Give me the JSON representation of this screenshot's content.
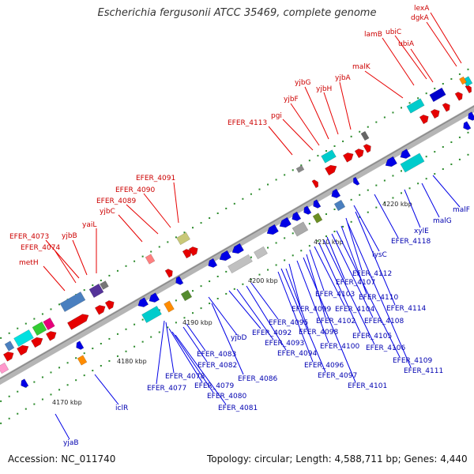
{
  "title": "Escherichia fergusonii ATCC 35469, complete genome",
  "footer": {
    "accession": "Accession: NC_011740",
    "summary": "Topology: circular; Length: 4,588,711 bp; Genes: 4,440"
  },
  "colors": {
    "forward": "#e60000",
    "reverse": "#0000e6",
    "backbone": "#9a9a9a",
    "tick": "#2a8a2a"
  },
  "scale_labels": [
    "4170 kbp",
    "4180 kbp",
    "4190 kbp",
    "4200 kbp",
    "4210 kbp",
    "4220 kbp"
  ],
  "forward_genes": [
    "metH",
    "EFER_4074",
    "EFER_4073",
    "yjbB",
    "yaiL",
    "yjbC",
    "EFER_4089",
    "EFER_4090",
    "EFER_4091",
    "EFER_4113",
    "pgi",
    "yjbF",
    "yjbG",
    "yjbH",
    "yjbA",
    "malK",
    "lamB",
    "ubiC",
    "ubiA",
    "dgkA",
    "lexA"
  ],
  "reverse_genes": [
    "yjaB",
    "iclR",
    "EFER_4077",
    "EFER_4078",
    "EFER_4079",
    "EFER_4080",
    "EFER_4081",
    "EFER_4082",
    "EFER_4083",
    "EFER_4086",
    "yjbD",
    "EFER_4092",
    "EFER_4093",
    "EFER_4094",
    "EFER_4095",
    "EFER_4096",
    "EFER_4097",
    "EFER_4098",
    "EFER_4099",
    "EFER_4100",
    "EFER_4101",
    "EFER_4102",
    "EFER_4103",
    "EFER_4104",
    "EFER_4105",
    "EFER_4106",
    "EFER_4107",
    "EFER_4108",
    "EFER_4109",
    "EFER_4110",
    "EFER_4111",
    "EFER_4112",
    "EFER_4114",
    "lysC",
    "EFER_4118",
    "xylE",
    "malG",
    "malF"
  ]
}
